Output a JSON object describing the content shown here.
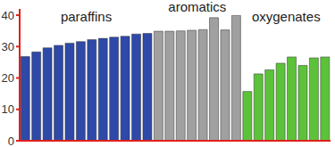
{
  "chart_data": {
    "type": "bar",
    "categories": [
      null,
      null,
      null,
      null,
      null,
      null,
      null,
      null,
      null,
      null,
      null,
      null,
      null,
      null,
      null,
      null,
      null,
      null,
      null,
      null,
      null,
      null,
      null,
      null,
      null,
      null,
      null,
      null
    ],
    "series": [
      {
        "name": "paraffins",
        "color": "#2e49a8",
        "values": [
          26.8,
          28.3,
          29.6,
          30.4,
          31.1,
          31.6,
          32.2,
          32.6,
          33.0,
          33.3,
          34.0,
          34.2,
          null,
          null,
          null,
          null,
          null,
          null,
          null,
          null,
          null,
          null,
          null,
          null,
          null,
          null,
          null,
          null
        ]
      },
      {
        "name": "aromatics",
        "color": "#a0a0a0",
        "values": [
          null,
          null,
          null,
          null,
          null,
          null,
          null,
          null,
          null,
          null,
          null,
          null,
          34.9,
          34.9,
          35.0,
          35.2,
          35.4,
          39.2,
          35.3,
          39.9,
          null,
          null,
          null,
          null,
          null,
          null,
          null,
          null
        ]
      },
      {
        "name": "oxygenates",
        "color": "#5cc23a",
        "values": [
          null,
          null,
          null,
          null,
          null,
          null,
          null,
          null,
          null,
          null,
          null,
          null,
          null,
          null,
          null,
          null,
          null,
          null,
          null,
          null,
          15.7,
          21.3,
          22.6,
          24.7,
          26.7,
          24.0,
          26.4,
          26.7
        ]
      }
    ],
    "ylim": [
      0,
      42
    ],
    "yticks": [
      0,
      10,
      20,
      30,
      40
    ],
    "grid": false,
    "tick_labels": "y"
  }
}
